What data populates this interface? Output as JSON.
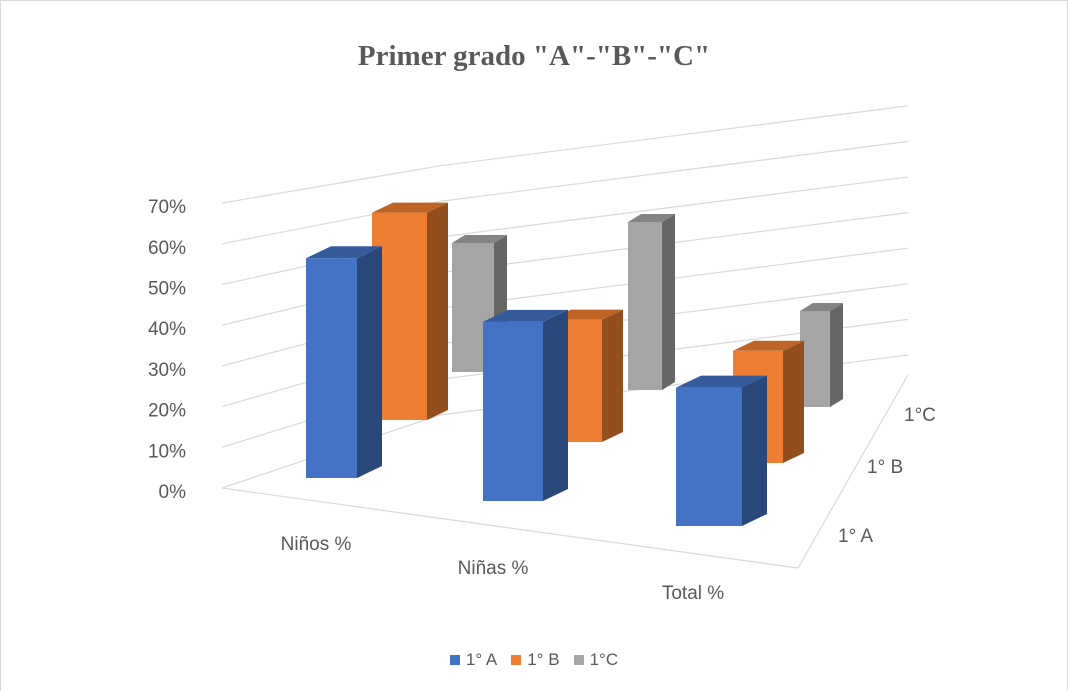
{
  "chart_data": {
    "type": "bar",
    "variant": "3d-column",
    "title": "Primer grado \"A\"-\"B\"-\"C\"",
    "categories": [
      "Niños %",
      "Niñas %",
      "Total %"
    ],
    "series": [
      {
        "name": "1° A",
        "color": "#4472c4",
        "values": [
          0.54,
          0.44,
          0.34
        ]
      },
      {
        "name": "1° B",
        "color": "#ed7d31",
        "values": [
          0.61,
          0.36,
          0.33
        ]
      },
      {
        "name": "1°C",
        "color": "#a5a5a5",
        "values": [
          0.43,
          0.56,
          0.32
        ]
      }
    ],
    "depth_labels": [
      "1°C",
      "1° B",
      "1° A"
    ],
    "y_ticks": [
      "0%",
      "10%",
      "20%",
      "30%",
      "40%",
      "50%",
      "60%",
      "70%"
    ],
    "ylim": [
      0,
      0.7
    ],
    "grid": true,
    "legend_position": "bottom"
  }
}
